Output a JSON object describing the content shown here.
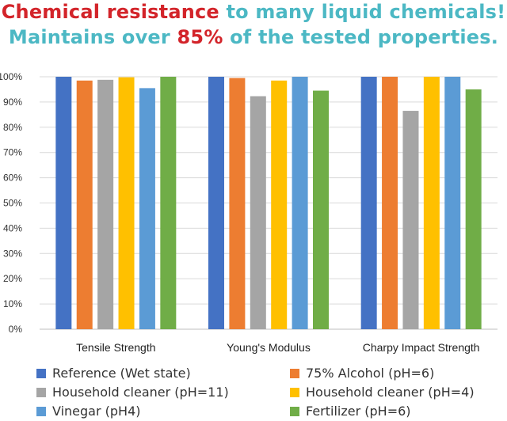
{
  "headline": {
    "line1": [
      {
        "text": "Chemical resistance",
        "color": "red"
      },
      {
        "text": " to many liquid chemicals!",
        "color": "teal"
      }
    ],
    "line2": [
      {
        "text": "Maintains over ",
        "color": "teal"
      },
      {
        "text": "85%",
        "color": "red"
      },
      {
        "text": " of the tested properties.",
        "color": "teal"
      }
    ]
  },
  "colors": {
    "red": "#d3242a",
    "teal": "#4cb8c4"
  },
  "chart_data": {
    "type": "bar",
    "categories": [
      "Tensile Strength",
      "Young's Modulus",
      "Charpy Impact Strength"
    ],
    "yticks": [
      "0%",
      "10%",
      "20%",
      "30%",
      "40%",
      "50%",
      "60%",
      "70%",
      "80%",
      "90%",
      "100%"
    ],
    "ylim": [
      0,
      100
    ],
    "grid": true,
    "legend_position": "bottom",
    "series": [
      {
        "name": "Reference (Wet state)",
        "color": "#4472c4",
        "values": [
          100,
          100,
          100
        ]
      },
      {
        "name": "75% Alcohol (pH=6)",
        "color": "#ed7d31",
        "values": [
          98.5,
          99.5,
          100
        ]
      },
      {
        "name": "Household cleaner (pH=11)",
        "color": "#a5a5a5",
        "values": [
          98.8,
          92.3,
          86.5
        ]
      },
      {
        "name": "Household cleaner (pH=4)",
        "color": "#ffc000",
        "values": [
          99.8,
          98.5,
          100
        ]
      },
      {
        "name": "Vinegar (pH4)",
        "color": "#5b9bd5",
        "values": [
          95.5,
          100,
          100
        ]
      },
      {
        "name": "Fertilizer (pH=6)",
        "color": "#70ad47",
        "values": [
          100,
          94.5,
          95
        ]
      }
    ]
  }
}
